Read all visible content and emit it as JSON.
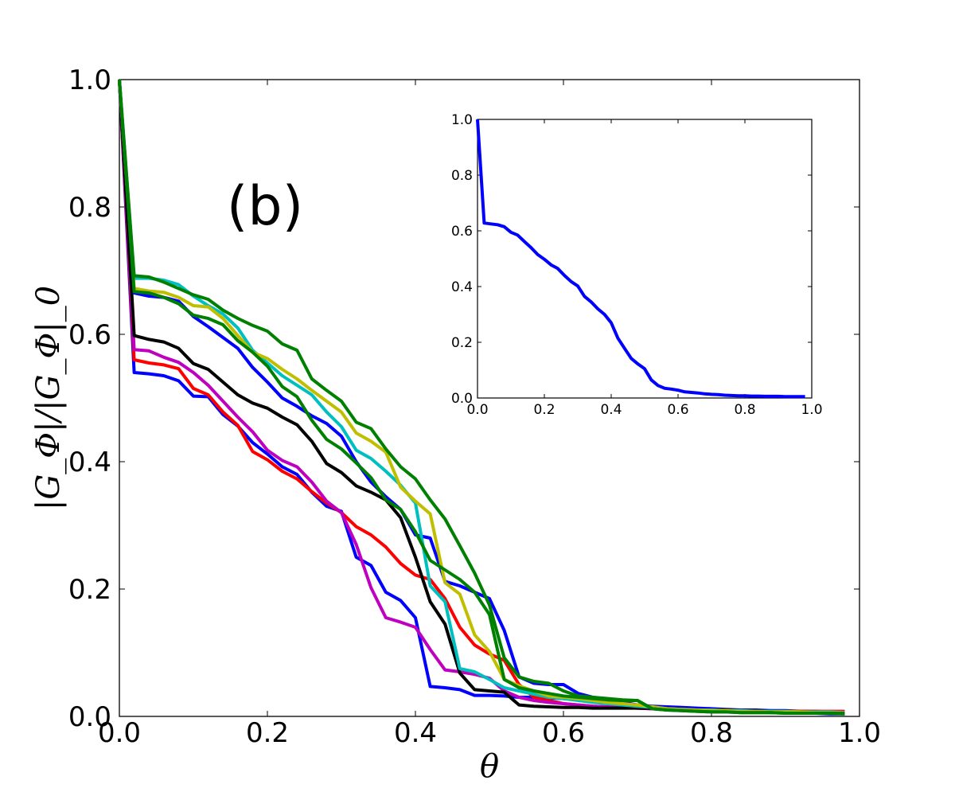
{
  "chart_data": [
    {
      "type": "line",
      "panel_label": "(b)",
      "xlabel": "θ",
      "ylabel": "|G_Φ|/|G_Φ|_0",
      "xlim": [
        0.0,
        1.0
      ],
      "ylim": [
        0.0,
        1.0
      ],
      "xticks": [
        "0.0",
        "0.2",
        "0.4",
        "0.6",
        "0.8",
        "1.0"
      ],
      "yticks": [
        "0.0",
        "0.2",
        "0.4",
        "0.6",
        "0.8",
        "1.0"
      ],
      "x": [
        0.0,
        0.02,
        0.04,
        0.06,
        0.08,
        0.1,
        0.12,
        0.14,
        0.16,
        0.18,
        0.2,
        0.22,
        0.24,
        0.26,
        0.28,
        0.3,
        0.32,
        0.34,
        0.36,
        0.38,
        0.4,
        0.42,
        0.44,
        0.46,
        0.48,
        0.5,
        0.52,
        0.54,
        0.56,
        0.58,
        0.6,
        0.62,
        0.64,
        0.66,
        0.68,
        0.7,
        0.72,
        0.74,
        0.76,
        0.78,
        0.8,
        0.82,
        0.84,
        0.86,
        0.88,
        0.9,
        0.92,
        0.94,
        0.96,
        0.98
      ],
      "series": [
        {
          "name": "blue-a",
          "color": "#0000ff",
          "values": [
            1.0,
            0.54,
            0.538,
            0.535,
            0.527,
            0.503,
            0.502,
            0.474,
            0.456,
            0.43,
            0.412,
            0.392,
            0.38,
            0.352,
            0.33,
            0.322,
            0.25,
            0.237,
            0.195,
            0.182,
            0.155,
            0.047,
            0.045,
            0.042,
            0.033,
            0.033,
            0.032,
            0.03,
            0.03,
            0.029,
            0.028,
            0.027,
            0.025,
            0.022,
            0.02,
            0.018,
            0.016,
            0.015,
            0.014,
            0.013,
            0.012,
            0.011,
            0.01,
            0.01,
            0.009,
            0.009,
            0.008,
            0.008,
            0.007,
            0.007
          ]
        },
        {
          "name": "red",
          "color": "#ff0000",
          "values": [
            1.0,
            0.56,
            0.555,
            0.552,
            0.546,
            0.515,
            0.505,
            0.478,
            0.457,
            0.416,
            0.403,
            0.385,
            0.373,
            0.353,
            0.335,
            0.32,
            0.298,
            0.285,
            0.266,
            0.24,
            0.222,
            0.215,
            0.185,
            0.14,
            0.112,
            0.098,
            0.088,
            0.05,
            0.03,
            0.025,
            0.02,
            0.018,
            0.016,
            0.015,
            0.014,
            0.013,
            0.012,
            0.011,
            0.01,
            0.01,
            0.009,
            0.009,
            0.009,
            0.008,
            0.008,
            0.008,
            0.008,
            0.008,
            0.008,
            0.008
          ]
        },
        {
          "name": "magenta",
          "color": "#bf00bf",
          "values": [
            1.0,
            0.576,
            0.574,
            0.564,
            0.556,
            0.54,
            0.52,
            0.495,
            0.47,
            0.447,
            0.418,
            0.402,
            0.392,
            0.368,
            0.338,
            0.32,
            0.27,
            0.202,
            0.155,
            0.148,
            0.14,
            0.105,
            0.073,
            0.07,
            0.066,
            0.06,
            0.04,
            0.03,
            0.025,
            0.022,
            0.02,
            0.018,
            0.016,
            0.015,
            0.014,
            0.013,
            0.012,
            0.011,
            0.01,
            0.01,
            0.009,
            0.009,
            0.008,
            0.008,
            0.008,
            0.007,
            0.007,
            0.007,
            0.007,
            0.007
          ]
        },
        {
          "name": "black",
          "color": "#000000",
          "values": [
            1.0,
            0.598,
            0.592,
            0.588,
            0.578,
            0.554,
            0.545,
            0.525,
            0.505,
            0.492,
            0.484,
            0.47,
            0.458,
            0.432,
            0.397,
            0.383,
            0.362,
            0.352,
            0.34,
            0.312,
            0.25,
            0.18,
            0.145,
            0.068,
            0.042,
            0.04,
            0.038,
            0.018,
            0.016,
            0.015,
            0.014,
            0.014,
            0.013,
            0.013,
            0.013,
            0.013,
            0.013,
            0.013,
            0.012,
            0.011,
            0.01,
            0.01,
            0.009,
            0.009,
            0.008,
            0.008,
            0.007,
            0.007,
            0.006,
            0.006
          ]
        },
        {
          "name": "blue-b",
          "color": "#0000ff",
          "values": [
            1.0,
            0.665,
            0.66,
            0.658,
            0.652,
            0.628,
            0.612,
            0.595,
            0.578,
            0.548,
            0.525,
            0.5,
            0.487,
            0.472,
            0.46,
            0.44,
            0.4,
            0.368,
            0.345,
            0.325,
            0.285,
            0.28,
            0.212,
            0.205,
            0.195,
            0.185,
            0.135,
            0.062,
            0.052,
            0.05,
            0.05,
            0.036,
            0.03,
            0.026,
            0.022,
            0.018,
            0.015,
            0.013,
            0.012,
            0.011,
            0.01,
            0.009,
            0.008,
            0.007,
            0.006,
            0.006,
            0.005,
            0.005,
            0.004,
            0.004
          ]
        },
        {
          "name": "cyan",
          "color": "#00bfbf",
          "values": [
            1.0,
            0.688,
            0.688,
            0.685,
            0.678,
            0.66,
            0.645,
            0.632,
            0.61,
            0.575,
            0.555,
            0.535,
            0.52,
            0.505,
            0.478,
            0.455,
            0.418,
            0.405,
            0.385,
            0.363,
            0.335,
            0.205,
            0.18,
            0.075,
            0.07,
            0.058,
            0.045,
            0.04,
            0.035,
            0.03,
            0.028,
            0.025,
            0.022,
            0.02,
            0.018,
            0.016,
            0.014,
            0.012,
            0.011,
            0.01,
            0.01,
            0.009,
            0.009,
            0.008,
            0.008,
            0.008,
            0.007,
            0.007,
            0.007,
            0.006
          ]
        },
        {
          "name": "yellow",
          "color": "#bfbf00",
          "values": [
            1.0,
            0.672,
            0.668,
            0.666,
            0.658,
            0.645,
            0.643,
            0.625,
            0.598,
            0.572,
            0.562,
            0.545,
            0.53,
            0.512,
            0.495,
            0.478,
            0.445,
            0.432,
            0.415,
            0.36,
            0.338,
            0.318,
            0.21,
            0.192,
            0.128,
            0.102,
            0.058,
            0.048,
            0.04,
            0.032,
            0.03,
            0.028,
            0.025,
            0.022,
            0.02,
            0.018,
            0.015,
            0.012,
            0.011,
            0.01,
            0.009,
            0.009,
            0.008,
            0.008,
            0.007,
            0.007,
            0.007,
            0.006,
            0.006,
            0.006
          ]
        },
        {
          "name": "green-a",
          "color": "#008000",
          "values": [
            1.0,
            0.692,
            0.69,
            0.682,
            0.672,
            0.662,
            0.655,
            0.638,
            0.625,
            0.614,
            0.605,
            0.585,
            0.575,
            0.53,
            0.512,
            0.495,
            0.462,
            0.452,
            0.42,
            0.392,
            0.373,
            0.34,
            0.31,
            0.268,
            0.225,
            0.175,
            0.092,
            0.062,
            0.055,
            0.052,
            0.04,
            0.032,
            0.03,
            0.028,
            0.026,
            0.025,
            0.012,
            0.01,
            0.009,
            0.008,
            0.007,
            0.007,
            0.006,
            0.006,
            0.006,
            0.005,
            0.005,
            0.005,
            0.005,
            0.005
          ]
        },
        {
          "name": "green-b",
          "color": "#008000",
          "values": [
            1.0,
            0.667,
            0.665,
            0.658,
            0.648,
            0.63,
            0.625,
            0.615,
            0.59,
            0.572,
            0.55,
            0.518,
            0.502,
            0.465,
            0.435,
            0.42,
            0.398,
            0.375,
            0.34,
            0.325,
            0.29,
            0.245,
            0.23,
            0.215,
            0.195,
            0.16,
            0.058,
            0.045,
            0.04,
            0.036,
            0.032,
            0.03,
            0.028,
            0.026,
            0.025,
            0.025,
            0.012,
            0.01,
            0.009,
            0.008,
            0.007,
            0.007,
            0.006,
            0.006,
            0.006,
            0.005,
            0.005,
            0.005,
            0.005,
            0.004
          ]
        }
      ]
    },
    {
      "type": "line",
      "panel_label": "",
      "xlim": [
        0.0,
        1.0
      ],
      "ylim": [
        0.0,
        1.0
      ],
      "xticks": [
        "0.0",
        "0.2",
        "0.4",
        "0.6",
        "0.8",
        "1.0"
      ],
      "yticks": [
        "0.0",
        "0.2",
        "0.4",
        "0.6",
        "0.8",
        "1.0"
      ],
      "x": [
        0.0,
        0.02,
        0.04,
        0.06,
        0.08,
        0.1,
        0.12,
        0.14,
        0.16,
        0.18,
        0.2,
        0.22,
        0.24,
        0.26,
        0.28,
        0.3,
        0.32,
        0.34,
        0.36,
        0.38,
        0.4,
        0.42,
        0.44,
        0.46,
        0.48,
        0.5,
        0.52,
        0.54,
        0.56,
        0.58,
        0.6,
        0.62,
        0.64,
        0.66,
        0.68,
        0.7,
        0.72,
        0.74,
        0.76,
        0.78,
        0.8,
        0.82,
        0.84,
        0.86,
        0.88,
        0.9,
        0.92,
        0.94,
        0.96,
        0.98
      ],
      "series": [
        {
          "name": "inset-blue",
          "color": "#0000ff",
          "values": [
            1.0,
            0.628,
            0.625,
            0.622,
            0.615,
            0.595,
            0.585,
            0.562,
            0.54,
            0.515,
            0.498,
            0.478,
            0.465,
            0.44,
            0.418,
            0.402,
            0.365,
            0.345,
            0.32,
            0.3,
            0.27,
            0.215,
            0.178,
            0.142,
            0.122,
            0.105,
            0.065,
            0.045,
            0.035,
            0.032,
            0.028,
            0.022,
            0.02,
            0.018,
            0.015,
            0.013,
            0.012,
            0.01,
            0.009,
            0.008,
            0.008,
            0.007,
            0.007,
            0.006,
            0.006,
            0.006,
            0.005,
            0.005,
            0.005,
            0.005
          ]
        }
      ]
    }
  ]
}
